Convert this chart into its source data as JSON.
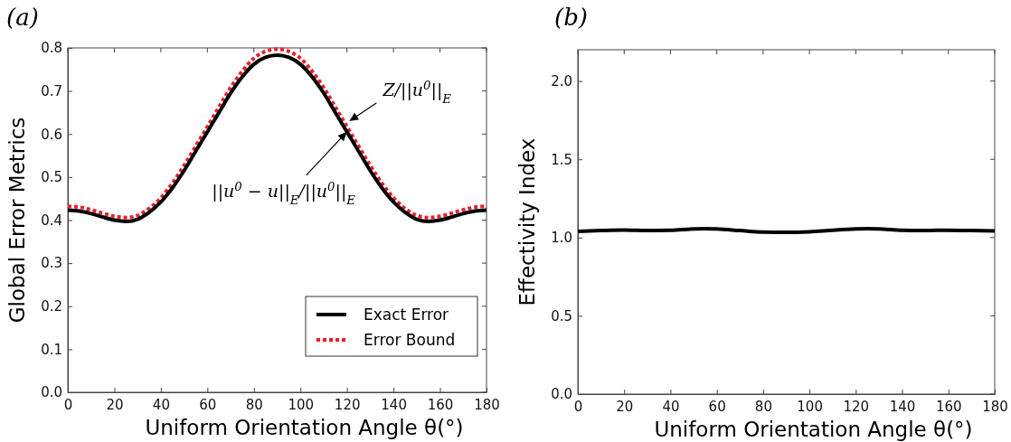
{
  "chart_data": [
    {
      "type": "line",
      "title": "(a)",
      "xlabel": "Uniform Orientation Angle θ(°)",
      "ylabel": "Global Error Metrics",
      "xlim": [
        0,
        180
      ],
      "xticks": [
        0,
        20,
        40,
        60,
        80,
        100,
        120,
        140,
        160,
        180
      ],
      "ylim": [
        0,
        0.8
      ],
      "yticks": [
        {
          "value": 0,
          "label": "0.0"
        },
        0.1,
        0.2,
        0.3,
        0.4,
        0.5,
        0.6,
        0.7,
        0.8
      ],
      "grid": false,
      "legend": "bottom right",
      "x": [
        0,
        5,
        10,
        15,
        20,
        25,
        30,
        35,
        40,
        45,
        50,
        55,
        60,
        65,
        70,
        75,
        80,
        85,
        90,
        95,
        100,
        105,
        110,
        115,
        120,
        125,
        130,
        135,
        140,
        145,
        150,
        155,
        160,
        165,
        170,
        175,
        180
      ],
      "series": [
        {
          "name": "Exact Error",
          "color": "#000000",
          "line_style": "solid",
          "values": [
            0.423,
            0.421,
            0.415,
            0.407,
            0.4,
            0.397,
            0.402,
            0.418,
            0.442,
            0.475,
            0.515,
            0.56,
            0.605,
            0.65,
            0.695,
            0.733,
            0.762,
            0.778,
            0.783,
            0.778,
            0.762,
            0.733,
            0.695,
            0.65,
            0.605,
            0.56,
            0.515,
            0.475,
            0.442,
            0.418,
            0.402,
            0.397,
            0.4,
            0.407,
            0.415,
            0.421,
            0.423
          ]
        },
        {
          "name": "Error Bound",
          "color": "#e8202a",
          "line_style": "dotted",
          "values": [
            0.432,
            0.43,
            0.424,
            0.416,
            0.409,
            0.406,
            0.411,
            0.427,
            0.452,
            0.486,
            0.527,
            0.572,
            0.617,
            0.663,
            0.708,
            0.746,
            0.776,
            0.792,
            0.797,
            0.792,
            0.776,
            0.746,
            0.708,
            0.663,
            0.617,
            0.572,
            0.527,
            0.486,
            0.452,
            0.427,
            0.411,
            0.406,
            0.409,
            0.416,
            0.424,
            0.43,
            0.432
          ]
        }
      ],
      "annotations": [
        {
          "text": "Z/||u$^{0}$||$_{E}$",
          "x": 121,
          "y": 0.63
        },
        {
          "text": "||u$^{0}$ − u||$_{E}$/||u$^{0}$||$_{E}$",
          "x": 120,
          "y": 0.605
        }
      ]
    },
    {
      "type": "line",
      "title": "(b)",
      "xlabel": "Uniform Orientation Angle θ(°)",
      "ylabel": "Effectivity Index",
      "xlim": [
        0,
        180
      ],
      "xticks": [
        0,
        20,
        40,
        60,
        80,
        100,
        120,
        140,
        160,
        180
      ],
      "ylim": [
        0,
        2.2
      ],
      "yticks": [
        {
          "value": 0,
          "label": "0.0"
        },
        0.5,
        {
          "value": 1,
          "label": "1.0"
        },
        1.5,
        {
          "value": 2,
          "label": "2.0"
        }
      ],
      "grid": false,
      "legend": false,
      "x": [
        0,
        10,
        20,
        30,
        40,
        50,
        55,
        60,
        70,
        80,
        90,
        100,
        110,
        120,
        125,
        130,
        140,
        150,
        160,
        170,
        180
      ],
      "series": [
        {
          "color": "#000000",
          "line_style": "solid",
          "values": [
            1.04,
            1.045,
            1.048,
            1.045,
            1.047,
            1.055,
            1.057,
            1.055,
            1.045,
            1.035,
            1.033,
            1.037,
            1.047,
            1.055,
            1.057,
            1.055,
            1.047,
            1.045,
            1.047,
            1.045,
            1.042
          ]
        }
      ]
    }
  ]
}
